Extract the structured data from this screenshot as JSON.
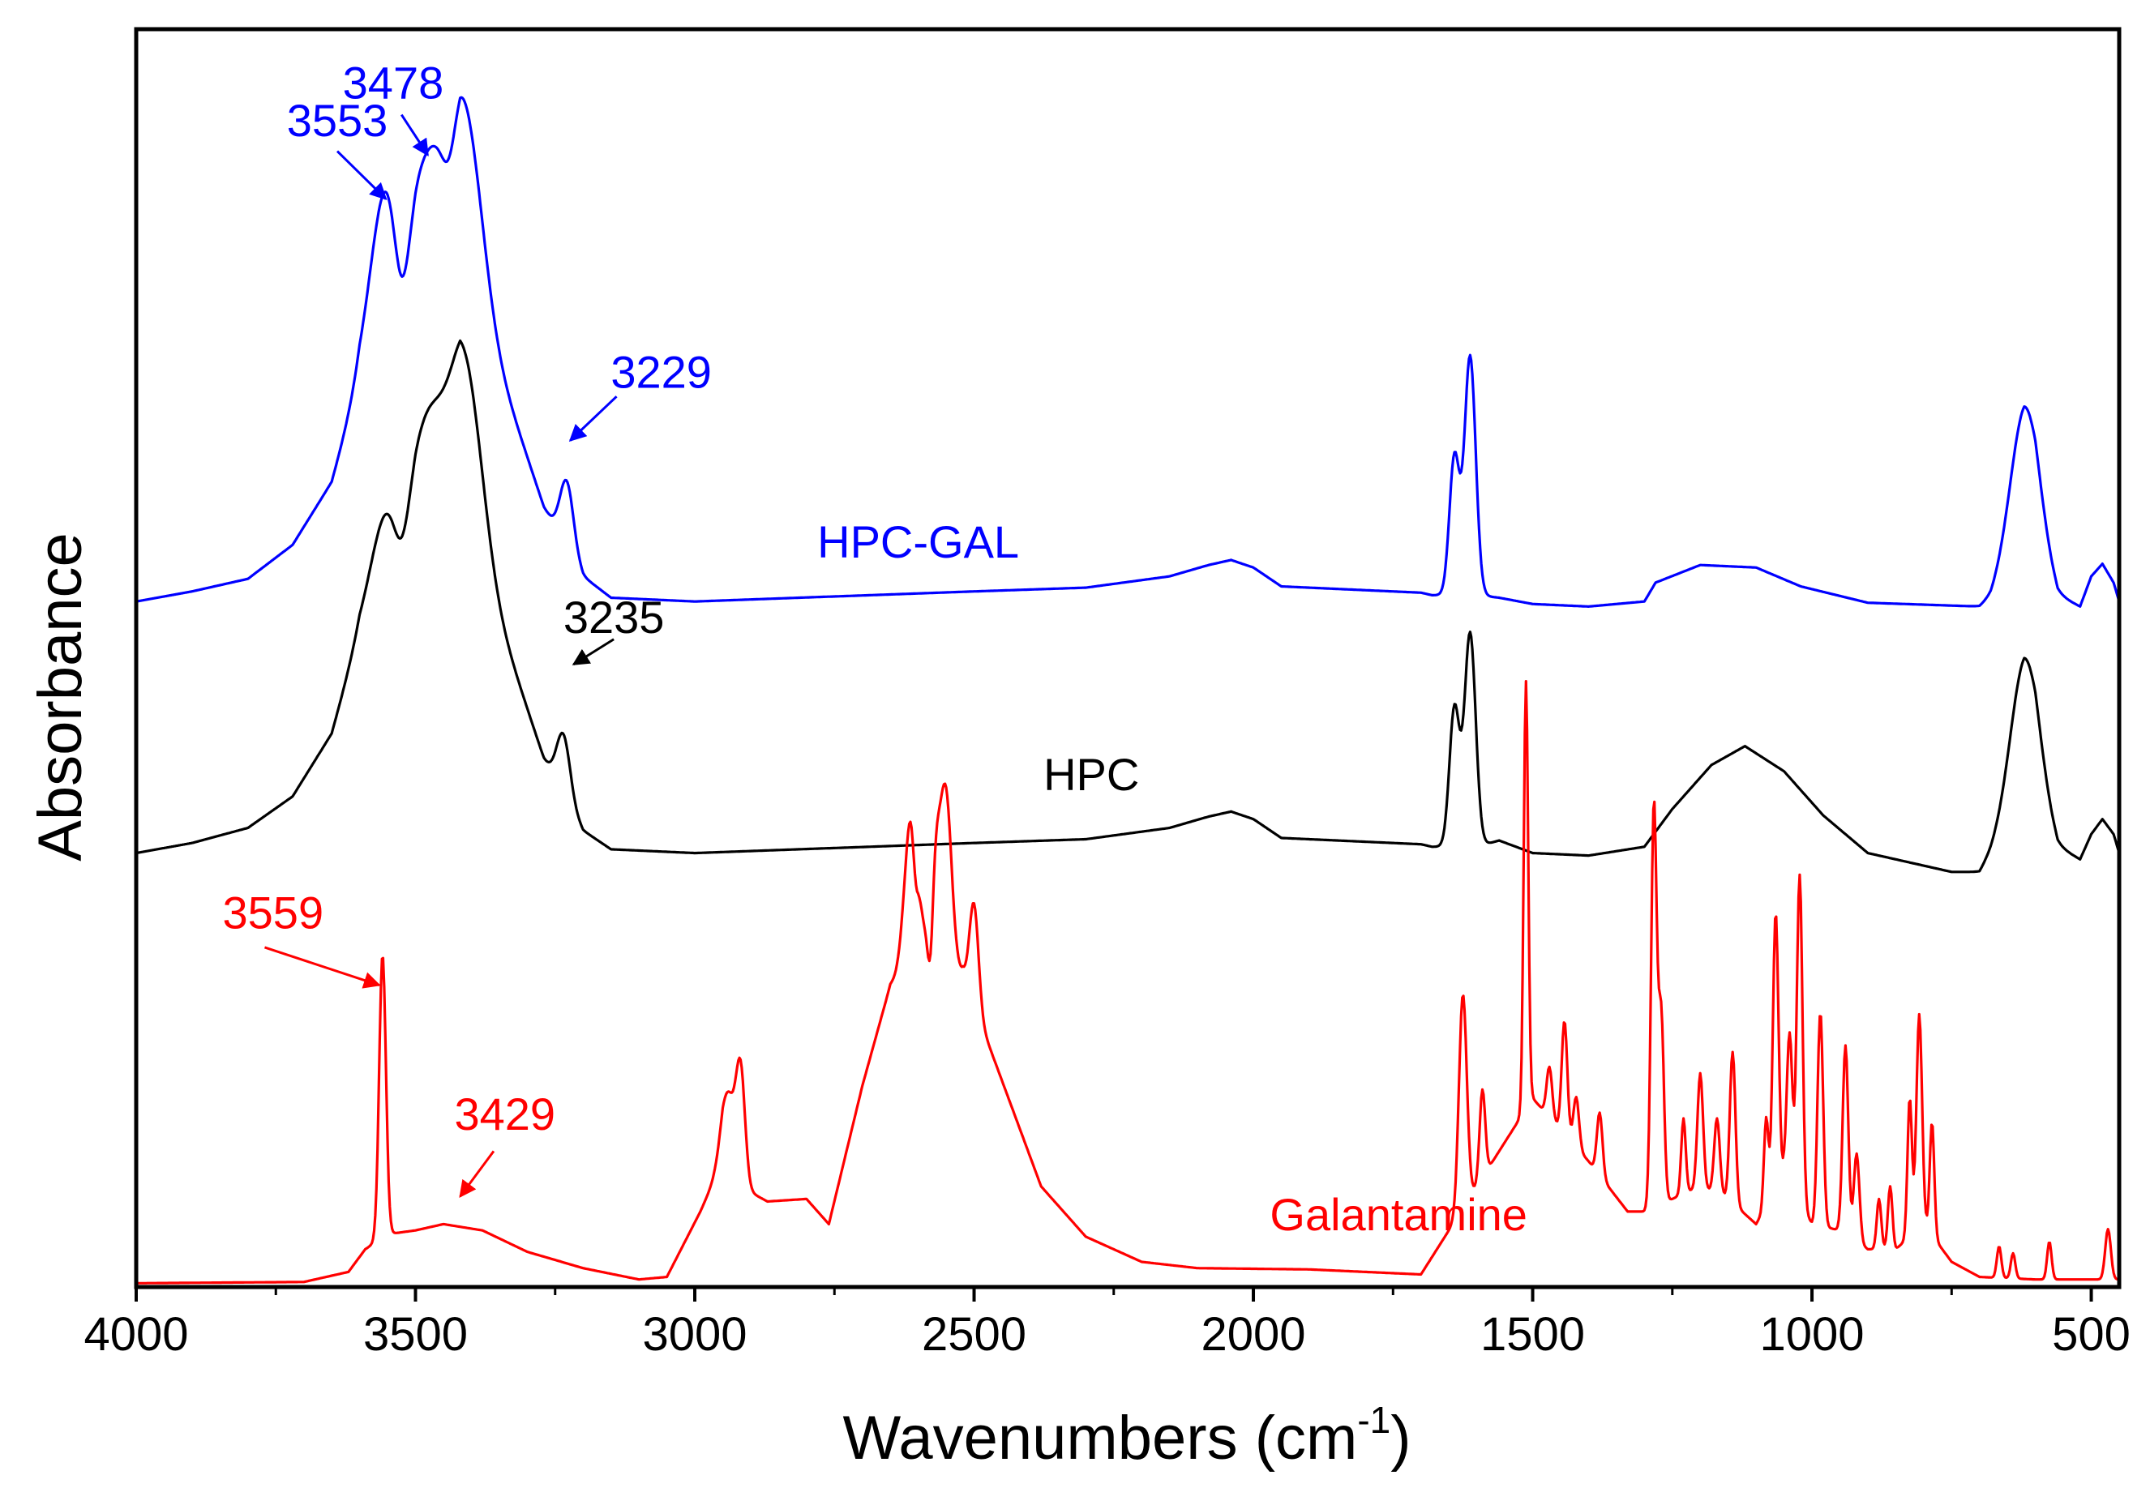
{
  "chart_data": {
    "type": "line",
    "title": "",
    "xlabel_main": "Wavenumbers (cm",
    "xlabel_sup": "-1",
    "xlabel_close": ")",
    "ylabel": "Absorbance",
    "xlim": [
      4000,
      450
    ],
    "x_direction": "reversed",
    "ylim": [
      0,
      1
    ],
    "y_ticks_shown": false,
    "x_ticks": [
      4000,
      3500,
      3000,
      2500,
      2000,
      1500,
      1000,
      500
    ],
    "x_tick_labels": [
      "4000",
      "3500",
      "3000",
      "2500",
      "2000",
      "1500",
      "1000",
      "500"
    ],
    "grid": false,
    "legend": "inline labels",
    "series": [
      {
        "name": "HPC-GAL",
        "color": "#0000ff",
        "label_at": [
          2600,
          0.58
        ],
        "baseline": [
          [
            4000,
            0.545
          ],
          [
            3900,
            0.553
          ],
          [
            3800,
            0.563
          ],
          [
            3720,
            0.59
          ],
          [
            3650,
            0.64
          ],
          [
            3600,
            0.72
          ],
          [
            3500,
            0.8
          ],
          [
            3420,
            0.82
          ],
          [
            3330,
            0.7
          ],
          [
            3270,
            0.62
          ],
          [
            3200,
            0.565
          ],
          [
            3150,
            0.548
          ],
          [
            3000,
            0.545
          ],
          [
            2500,
            0.553
          ],
          [
            2300,
            0.556
          ],
          [
            2150,
            0.565
          ],
          [
            2080,
            0.574
          ],
          [
            2040,
            0.578
          ],
          [
            2000,
            0.572
          ],
          [
            1950,
            0.557
          ],
          [
            1800,
            0.554
          ],
          [
            1700,
            0.552
          ],
          [
            1680,
            0.55
          ],
          [
            1660,
            0.55
          ],
          [
            1640,
            0.55
          ],
          [
            1600,
            0.55
          ],
          [
            1560,
            0.548
          ],
          [
            1500,
            0.543
          ],
          [
            1400,
            0.541
          ],
          [
            1300,
            0.545
          ],
          [
            1280,
            0.56
          ],
          [
            1200,
            0.574
          ],
          [
            1100,
            0.572
          ],
          [
            1020,
            0.557
          ],
          [
            900,
            0.544
          ],
          [
            700,
            0.541
          ],
          [
            680,
            0.548
          ],
          [
            620,
            0.6
          ],
          [
            600,
            0.6
          ],
          [
            560,
            0.55
          ],
          [
            520,
            0.541
          ],
          [
            500,
            0.565
          ],
          [
            480,
            0.575
          ],
          [
            460,
            0.56
          ],
          [
            450,
            0.545
          ]
        ],
        "peaks": [
          [
            3553,
            0.12,
            28
          ],
          [
            3478,
            0.085,
            28
          ],
          [
            3410,
            0.13,
            30
          ],
          [
            3229,
            0.053,
            12
          ],
          [
            1640,
            0.11,
            9
          ],
          [
            1612,
            0.19,
            10
          ],
          [
            620,
            0.1,
            25
          ]
        ],
        "dips": [
          [
            3525,
            0.07,
            14
          ],
          [
            3440,
            0.03,
            12
          ]
        ]
      },
      {
        "name": "HPC",
        "color": "#000000",
        "label_at": [
          2290,
          0.395
        ],
        "baseline": [
          [
            4000,
            0.345
          ],
          [
            3900,
            0.353
          ],
          [
            3800,
            0.365
          ],
          [
            3720,
            0.39
          ],
          [
            3650,
            0.44
          ],
          [
            3600,
            0.52
          ],
          [
            3500,
            0.6
          ],
          [
            3420,
            0.62
          ],
          [
            3330,
            0.5
          ],
          [
            3270,
            0.42
          ],
          [
            3200,
            0.363
          ],
          [
            3150,
            0.348
          ],
          [
            3000,
            0.345
          ],
          [
            2500,
            0.353
          ],
          [
            2300,
            0.356
          ],
          [
            2150,
            0.365
          ],
          [
            2080,
            0.374
          ],
          [
            2040,
            0.378
          ],
          [
            2000,
            0.372
          ],
          [
            1950,
            0.357
          ],
          [
            1800,
            0.354
          ],
          [
            1700,
            0.352
          ],
          [
            1680,
            0.35
          ],
          [
            1600,
            0.35
          ],
          [
            1560,
            0.355
          ],
          [
            1500,
            0.345
          ],
          [
            1400,
            0.343
          ],
          [
            1300,
            0.35
          ],
          [
            1250,
            0.38
          ],
          [
            1180,
            0.415
          ],
          [
            1120,
            0.43
          ],
          [
            1050,
            0.41
          ],
          [
            980,
            0.375
          ],
          [
            900,
            0.345
          ],
          [
            750,
            0.33
          ],
          [
            700,
            0.33
          ],
          [
            680,
            0.345
          ],
          [
            620,
            0.4
          ],
          [
            600,
            0.4
          ],
          [
            560,
            0.35
          ],
          [
            520,
            0.34
          ],
          [
            500,
            0.36
          ],
          [
            480,
            0.372
          ],
          [
            460,
            0.36
          ],
          [
            450,
            0.345
          ]
        ],
        "peaks": [
          [
            3553,
            0.06,
            28
          ],
          [
            3478,
            0.08,
            28
          ],
          [
            3410,
            0.13,
            30
          ],
          [
            3235,
            0.048,
            12
          ],
          [
            1640,
            0.11,
            9
          ],
          [
            1612,
            0.17,
            10
          ],
          [
            620,
            0.1,
            25
          ]
        ],
        "dips": [
          [
            3525,
            0.04,
            14
          ]
        ]
      },
      {
        "name": "Galantamine",
        "color": "#ff0000",
        "label_at": [
          1740,
          0.045
        ],
        "baseline": [
          [
            4000,
            0.003
          ],
          [
            3700,
            0.004
          ],
          [
            3620,
            0.012
          ],
          [
            3590,
            0.03
          ],
          [
            3550,
            0.042
          ],
          [
            3500,
            0.045
          ],
          [
            3450,
            0.05
          ],
          [
            3380,
            0.045
          ],
          [
            3300,
            0.028
          ],
          [
            3200,
            0.015
          ],
          [
            3100,
            0.006
          ],
          [
            3050,
            0.008
          ],
          [
            2990,
            0.06
          ],
          [
            2950,
            0.1
          ],
          [
            2920,
            0.08
          ],
          [
            2870,
            0.068
          ],
          [
            2800,
            0.07
          ],
          [
            2760,
            0.05
          ],
          [
            2700,
            0.16
          ],
          [
            2650,
            0.24
          ],
          [
            2600,
            0.26
          ],
          [
            2560,
            0.25
          ],
          [
            2520,
            0.25
          ],
          [
            2480,
            0.2
          ],
          [
            2430,
            0.14
          ],
          [
            2380,
            0.08
          ],
          [
            2300,
            0.04
          ],
          [
            2200,
            0.02
          ],
          [
            2100,
            0.015
          ],
          [
            1900,
            0.014
          ],
          [
            1700,
            0.01
          ],
          [
            1650,
            0.045
          ],
          [
            1500,
            0.15
          ],
          [
            1400,
            0.1
          ],
          [
            1330,
            0.06
          ],
          [
            1300,
            0.06
          ],
          [
            1250,
            0.07
          ],
          [
            1200,
            0.08
          ],
          [
            1150,
            0.07
          ],
          [
            1100,
            0.05
          ],
          [
            1050,
            0.09
          ],
          [
            1000,
            0.05
          ],
          [
            950,
            0.045
          ],
          [
            900,
            0.03
          ],
          [
            850,
            0.03
          ],
          [
            800,
            0.05
          ],
          [
            750,
            0.02
          ],
          [
            700,
            0.008
          ],
          [
            600,
            0.006
          ],
          [
            450,
            0.006
          ]
        ],
        "peaks": [
          [
            3559,
            0.225,
            6
          ],
          [
            2940,
            0.06,
            12
          ],
          [
            2918,
            0.09,
            8
          ],
          [
            2612,
            0.125,
            12
          ],
          [
            2570,
            0.09,
            10
          ],
          [
            2550,
            0.135,
            10
          ],
          [
            2500,
            0.08,
            8
          ],
          [
            1625,
            0.17,
            7
          ],
          [
            1590,
            0.07,
            5
          ],
          [
            1512,
            0.34,
            4
          ],
          [
            1470,
            0.04,
            5
          ],
          [
            1443,
            0.09,
            5
          ],
          [
            1422,
            0.04,
            5
          ],
          [
            1380,
            0.05,
            5
          ],
          [
            1283,
            0.32,
            5
          ],
          [
            1270,
            0.15,
            5
          ],
          [
            1230,
            0.06,
            4
          ],
          [
            1200,
            0.09,
            5
          ],
          [
            1170,
            0.06,
            5
          ],
          [
            1142,
            0.12,
            5
          ],
          [
            1082,
            0.07,
            4
          ],
          [
            1065,
            0.22,
            5
          ],
          [
            1040,
            0.12,
            5
          ],
          [
            1022,
            0.26,
            5
          ],
          [
            985,
            0.17,
            5
          ],
          [
            940,
            0.15,
            5
          ],
          [
            920,
            0.07,
            5
          ],
          [
            880,
            0.04,
            4
          ],
          [
            860,
            0.05,
            4
          ],
          [
            825,
            0.11,
            4
          ],
          [
            808,
            0.17,
            5
          ],
          [
            785,
            0.09,
            4
          ],
          [
            665,
            0.025,
            4
          ],
          [
            640,
            0.02,
            4
          ],
          [
            575,
            0.03,
            4
          ],
          [
            470,
            0.04,
            5
          ]
        ],
        "dips": [
          [
            2605,
            0.04,
            5
          ],
          [
            2578,
            0.06,
            5
          ]
        ]
      }
    ],
    "annotations": [
      {
        "text": "3478",
        "series": "HPC-GAL",
        "color": "#0000ff",
        "text_at": [
          3540,
          0.945
        ],
        "arrow_from": [
          3525,
          0.932
        ],
        "arrow_to": [
          3478,
          0.9
        ]
      },
      {
        "text": "3553",
        "series": "HPC-GAL",
        "color": "#0000ff",
        "text_at": [
          3640,
          0.915
        ],
        "arrow_from": [
          3640,
          0.903
        ],
        "arrow_to": [
          3553,
          0.865
        ]
      },
      {
        "text": "3229",
        "series": "HPC-GAL",
        "color": "#0000ff",
        "text_at": [
          3060,
          0.715
        ],
        "arrow_from": [
          3140,
          0.708
        ],
        "arrow_to": [
          3223,
          0.673
        ]
      },
      {
        "text": "3235",
        "series": "HPC",
        "color": "#000000",
        "text_at": [
          3145,
          0.52
        ],
        "arrow_from": [
          3145,
          0.515
        ],
        "arrow_to": [
          3217,
          0.495
        ]
      },
      {
        "text": "3559",
        "series": "Galantamine",
        "color": "#ff0000",
        "text_at": [
          3755,
          0.285
        ],
        "arrow_from": [
          3770,
          0.27
        ],
        "arrow_to": [
          3565,
          0.24
        ]
      },
      {
        "text": "3429",
        "series": "Galantamine",
        "color": "#ff0000",
        "text_at": [
          3340,
          0.125
        ],
        "arrow_from": [
          3360,
          0.108
        ],
        "arrow_to": [
          3420,
          0.072
        ]
      }
    ]
  }
}
